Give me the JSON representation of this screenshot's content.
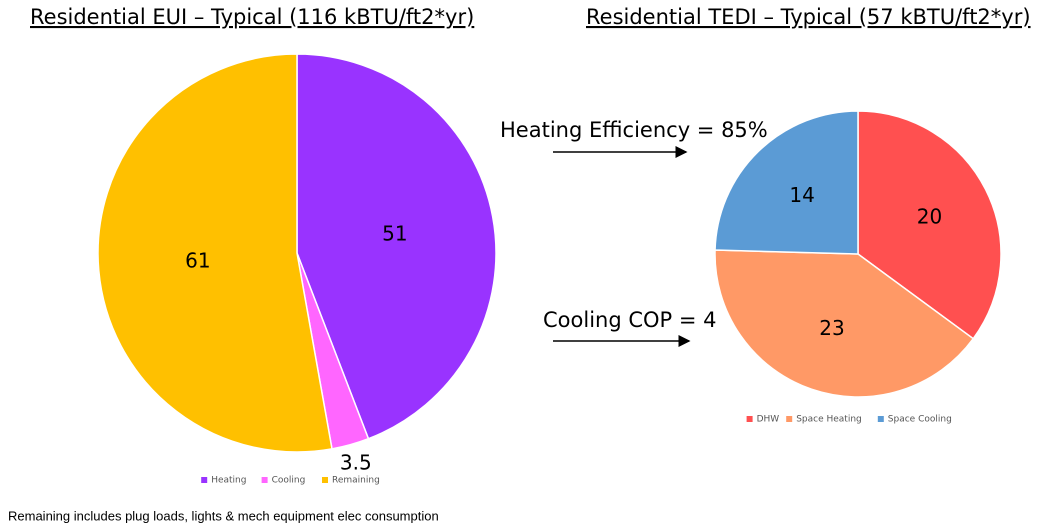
{
  "chart_data": [
    {
      "type": "pie",
      "title": "Residential EUI – Typical (116 kBTU/ft2*yr)",
      "categories": [
        "Heating",
        "Cooling",
        "Remaining"
      ],
      "values": [
        51,
        3.5,
        61
      ],
      "colors": [
        "#9933ff",
        "#ff66ff",
        "#ffc000"
      ]
    },
    {
      "type": "pie",
      "title": "Residential TEDI – Typical (57 kBTU/ft2*yr)",
      "categories": [
        "DHW",
        "Space Heating",
        "Space Cooling"
      ],
      "values": [
        20,
        23,
        14
      ],
      "colors": [
        "#ff5050",
        "#ff9966",
        "#5b9bd5"
      ],
      "annotations": [
        "Heating Efficiency = 85%",
        "Cooling COP = 4"
      ]
    }
  ],
  "footnote": "Remaining includes plug loads, lights & mech equipment elec consumption"
}
